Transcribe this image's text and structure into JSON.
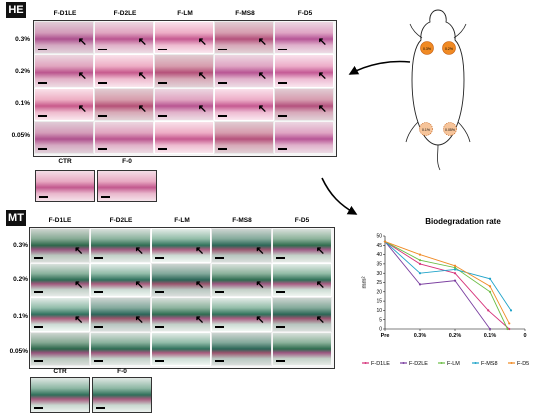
{
  "he_panel": {
    "label": "HE",
    "columns": [
      "F-D1LE",
      "F-D2LE",
      "F-LM",
      "F-MS8",
      "F-D5"
    ],
    "rows": [
      "0.3%",
      "0.2%",
      "0.1%",
      "0.05%"
    ],
    "controls": [
      "CTR",
      "F-0"
    ]
  },
  "mt_panel": {
    "label": "MT",
    "columns": [
      "F-D1LE",
      "F-D2LE",
      "F-LM",
      "F-MS8",
      "F-D5"
    ],
    "rows": [
      "0.3%",
      "0.2%",
      "0.1%",
      "0.05%"
    ],
    "controls": [
      "CTR",
      "F-0"
    ]
  },
  "implant_labels": [
    "0.3%",
    "0.2%",
    "0.1%",
    "0.05%"
  ],
  "colors": {
    "F-D1LE": "#d6337a",
    "F-D2LE": "#7b3fa0",
    "F-LM": "#6bbd45",
    "F-MS8": "#1fa3c9",
    "F-D5": "#f08a24"
  },
  "chart_data": {
    "type": "line",
    "title": "Biodegradation rate",
    "ylabel": "mm²",
    "categories": [
      "Pre",
      "0.3%",
      "0.2%",
      "0.1%",
      "0"
    ],
    "ylim": [
      0,
      50
    ],
    "yticks": [
      "0",
      "5",
      "10",
      "15",
      "20",
      "25",
      "30",
      "35",
      "40",
      "45",
      "50"
    ],
    "series": [
      {
        "name": "F-D1LE",
        "points": [
          [
            0,
            47
          ],
          [
            1,
            35
          ],
          [
            2,
            30
          ],
          [
            2.95,
            10
          ],
          [
            3.55,
            0
          ]
        ]
      },
      {
        "name": "F-D2LE",
        "points": [
          [
            0,
            47
          ],
          [
            1,
            24
          ],
          [
            2,
            26
          ],
          [
            3,
            0
          ]
        ]
      },
      {
        "name": "F-LM",
        "points": [
          [
            0,
            47
          ],
          [
            1,
            37
          ],
          [
            2,
            33
          ],
          [
            3,
            20
          ],
          [
            3.5,
            0
          ]
        ]
      },
      {
        "name": "F-MS8",
        "points": [
          [
            0,
            47
          ],
          [
            1,
            30
          ],
          [
            2,
            32
          ],
          [
            3,
            27
          ],
          [
            3.6,
            10
          ]
        ]
      },
      {
        "name": "F-D5",
        "points": [
          [
            0,
            47
          ],
          [
            1,
            40
          ],
          [
            2,
            34
          ],
          [
            3,
            23
          ],
          [
            3.55,
            3
          ]
        ]
      }
    ],
    "legend": [
      "F-D1LE",
      "F-D2LE",
      "F-LM",
      "F-MS8",
      "F-D5"
    ],
    "legend_position": "bottom",
    "grid": false
  }
}
